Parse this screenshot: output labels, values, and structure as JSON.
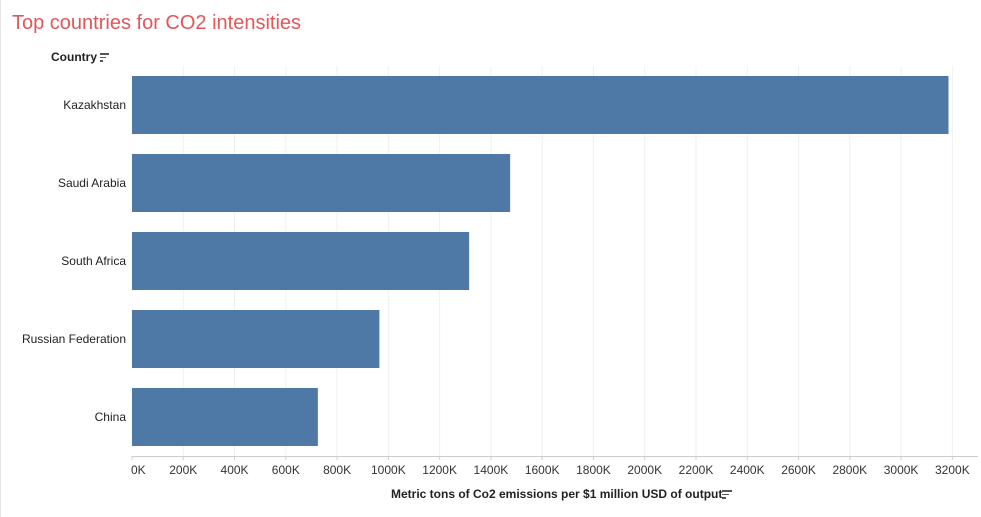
{
  "chart_data": {
    "type": "bar",
    "orientation": "horizontal",
    "title": "Top countries for CO2 intensities",
    "ylabel": "Country",
    "xlabel": "Metric tons of Co2 emissions per $1 million USD of output",
    "categories": [
      "Kazakhstan",
      "Saudi Arabia",
      "South Africa",
      "Russian Federation",
      "China"
    ],
    "values": [
      3185000,
      1475000,
      1315000,
      965000,
      725000
    ],
    "xlim": [
      0,
      3300000
    ],
    "xticks": [
      0,
      200000,
      400000,
      600000,
      800000,
      1000000,
      1200000,
      1400000,
      1600000,
      1800000,
      2000000,
      2200000,
      2400000,
      2600000,
      2800000,
      3000000,
      3200000
    ],
    "xtick_labels": [
      "0K",
      "200K",
      "400K",
      "600K",
      "800K",
      "1000K",
      "1200K",
      "1400K",
      "1600K",
      "1800K",
      "2000K",
      "2200K",
      "2400K",
      "2600K",
      "2800K",
      "3000K",
      "3200K"
    ],
    "grid": true,
    "legend": "none",
    "sorted": "descending",
    "colors": {
      "bar": "#4e79a7",
      "title": "#e15759",
      "gridline": "#f0f0f0",
      "axis": "#cccccc"
    }
  },
  "icons": {
    "sort": "sort-descending-icon"
  }
}
